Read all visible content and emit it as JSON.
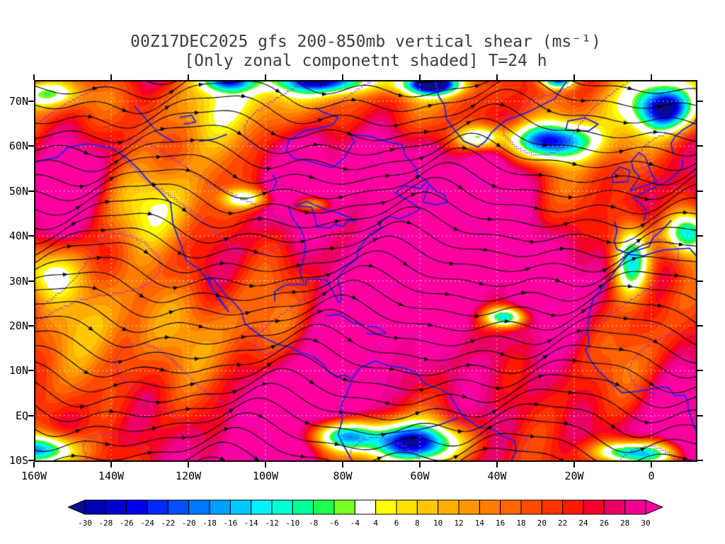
{
  "title": {
    "line1": "00Z17DEC2025 gfs 200-850mb vertical shear (ms⁻¹)",
    "line2": "[Only zonal componetnt shaded] T=24 h"
  },
  "axes": {
    "lat_ticks": [
      "70N",
      "60N",
      "50N",
      "40N",
      "30N",
      "20N",
      "10N",
      "EQ",
      "10S"
    ],
    "lon_ticks": [
      "160W",
      "140W",
      "120W",
      "100W",
      "80W",
      "60W",
      "40W",
      "20W",
      "0"
    ]
  },
  "colorbar": {
    "tick_labels": [
      "-30",
      "-28",
      "-26",
      "-24",
      "-22",
      "-20",
      "-18",
      "-16",
      "-14",
      "-12",
      "-10",
      "-8",
      "-6",
      "-4",
      "4",
      "6",
      "8",
      "10",
      "12",
      "14",
      "16",
      "18",
      "20",
      "22",
      "24",
      "26",
      "28",
      "30"
    ],
    "palette": [
      "#0a0a8c",
      "#0000b4",
      "#0000d2",
      "#0000f0",
      "#0028ff",
      "#0050ff",
      "#0078ff",
      "#00a0ff",
      "#00c8ff",
      "#00f0ff",
      "#00ffd2",
      "#00ff96",
      "#1eff50",
      "#78ff28",
      "#ffffff",
      "#ffff00",
      "#ffe100",
      "#ffc800",
      "#ffaf00",
      "#ff9600",
      "#ff7d00",
      "#ff6400",
      "#ff4b00",
      "#ff3200",
      "#ff1900",
      "#f50028",
      "#eb0064",
      "#f0008c",
      "#ff00a0"
    ]
  },
  "map_style": {
    "streamline_color": "#000000",
    "coastline_color": "#2222e6",
    "contour_color": "#a020f0",
    "graticule_color": "#ffffff",
    "frame_color": "#000000",
    "title_color": "#3c3c3c"
  },
  "chart_data": {
    "type": "heatmap",
    "title": "00Z17DEC2025 gfs 200-850mb vertical shear (ms-1)",
    "subtitle": "[Only zonal componetnt shaded] T=24 h",
    "init_time": "00Z17DEC2025",
    "model": "gfs",
    "field": "200-850mb vertical wind shear, zonal component shaded",
    "units": "m/s",
    "forecast_hour": 24,
    "legend_position": "bottom",
    "x": {
      "label": "longitude",
      "tick_labels": [
        "160W",
        "140W",
        "120W",
        "100W",
        "80W",
        "60W",
        "40W",
        "20W",
        "0"
      ],
      "tick_values": [
        -160,
        -140,
        -120,
        -100,
        -80,
        -60,
        -40,
        -20,
        0
      ],
      "range": [
        -160,
        12
      ]
    },
    "y": {
      "label": "latitude",
      "tick_labels": [
        "70N",
        "60N",
        "50N",
        "40N",
        "30N",
        "20N",
        "10N",
        "EQ",
        "10S"
      ],
      "tick_values": [
        70,
        60,
        50,
        40,
        30,
        20,
        10,
        0,
        -10
      ],
      "range": [
        -10.3,
        74.7
      ]
    },
    "shade_levels": [
      -30,
      -28,
      -26,
      -24,
      -22,
      -20,
      -18,
      -16,
      -14,
      -12,
      -10,
      -8,
      -6,
      -4,
      4,
      6,
      8,
      10,
      12,
      14,
      16,
      18,
      20,
      22,
      24,
      26,
      28,
      30
    ],
    "overlays": [
      "shear vector streamlines with arrowheads (black)",
      "coastlines and lakes/rivers (blue)",
      "thin contours (purple)",
      "dotted 10x20 degree graticule (white)"
    ],
    "sampled_values_note": "approximate zonal shear (m/s) read from shading at graticule intersections; 30 means >= 30 (magenta), negative values are green/blue shades",
    "sampled_values": {
      "lats": [
        70,
        60,
        50,
        40,
        30,
        20,
        10,
        0,
        -10
      ],
      "lons": [
        -160,
        -140,
        -120,
        -100,
        -80,
        -60,
        -40,
        -20,
        0
      ],
      "grid": [
        [
          8,
          18,
          22,
          -8,
          -4,
          24,
          20,
          -6,
          10
        ],
        [
          20,
          26,
          30,
          30,
          28,
          30,
          12,
          -4,
          8
        ],
        [
          30,
          24,
          26,
          10,
          6,
          30,
          30,
          30,
          26
        ],
        [
          26,
          30,
          30,
          30,
          30,
          30,
          30,
          30,
          -8
        ],
        [
          4,
          16,
          30,
          30,
          30,
          30,
          30,
          18,
          -12
        ],
        [
          12,
          10,
          14,
          18,
          30,
          30,
          -6,
          30,
          30
        ],
        [
          18,
          14,
          10,
          16,
          24,
          30,
          30,
          30,
          22
        ],
        [
          30,
          30,
          30,
          30,
          20,
          8,
          30,
          30,
          18
        ],
        [
          -10,
          30,
          30,
          30,
          -8,
          -14,
          10,
          30,
          -6
        ]
      ]
    }
  }
}
